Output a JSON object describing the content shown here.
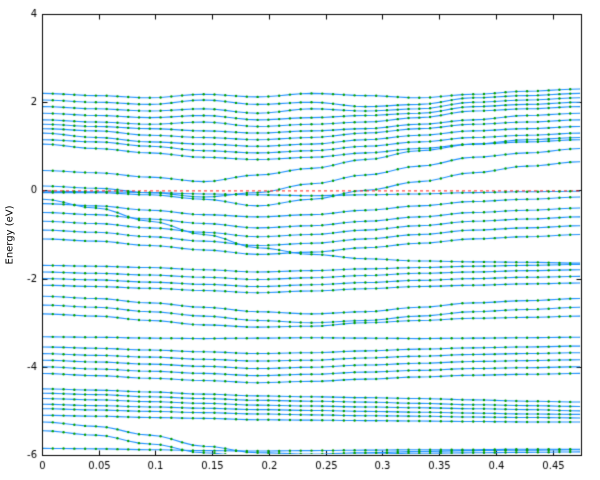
{
  "figure": {
    "background": "#ffffff"
  },
  "chart_data": {
    "type": "line",
    "title": "",
    "xlabel": "",
    "ylabel": "Energy (eV)",
    "xlim": [
      0,
      0.475
    ],
    "ylim": [
      -6,
      4
    ],
    "x_ticks": [
      0,
      0.05,
      0.1,
      0.15,
      0.2,
      0.25,
      0.3,
      0.35,
      0.4,
      0.45
    ],
    "x_tick_labels": [
      "0",
      "0.05",
      "0.1",
      "0.15",
      "0.2",
      "0.25",
      "0.3",
      "0.35",
      "0.4",
      "0.45"
    ],
    "y_ticks": [
      4,
      2,
      0,
      -2,
      -4,
      -6
    ],
    "y_tick_labels": [
      "4",
      "2",
      "0",
      "-2",
      "-4",
      "-6"
    ],
    "grid": false,
    "legend": "none",
    "line_color": "#1e90ff",
    "marker_color": "#00a000",
    "axis_color": "#000000",
    "fermi_level": {
      "y": 0,
      "color": "#ff2020",
      "style": "dashed"
    },
    "band_t": [
      0,
      0.1,
      0.2,
      0.3,
      0.4,
      0.5,
      0.6,
      0.7,
      0.8,
      0.9,
      1.0
    ],
    "bands": [
      [
        2.2,
        2.15,
        2.1,
        2.18,
        2.12,
        2.2,
        2.15,
        2.1,
        2.18,
        2.25,
        2.3
      ],
      [
        2.05,
        2.0,
        1.95,
        2.05,
        1.95,
        2.0,
        1.9,
        1.95,
        2.1,
        2.15,
        2.2
      ],
      [
        1.9,
        1.85,
        1.8,
        1.85,
        1.75,
        1.85,
        1.8,
        1.85,
        2.0,
        2.05,
        2.1
      ],
      [
        1.75,
        1.7,
        1.65,
        1.7,
        1.6,
        1.65,
        1.7,
        1.75,
        1.9,
        1.95,
        2.0
      ],
      [
        1.6,
        1.55,
        1.5,
        1.55,
        1.45,
        1.5,
        1.55,
        1.65,
        1.8,
        1.85,
        1.9
      ],
      [
        1.5,
        1.45,
        1.4,
        1.35,
        1.3,
        1.35,
        1.4,
        1.5,
        1.6,
        1.7,
        1.75
      ],
      [
        1.4,
        1.35,
        1.25,
        1.2,
        1.15,
        1.2,
        1.3,
        1.4,
        1.5,
        1.55,
        1.6
      ],
      [
        1.3,
        1.2,
        1.1,
        1.05,
        1.0,
        1.05,
        1.15,
        1.25,
        1.35,
        1.4,
        1.45
      ],
      [
        1.15,
        1.1,
        1.0,
        0.9,
        0.85,
        0.9,
        1.0,
        1.1,
        1.2,
        1.25,
        1.3
      ],
      [
        1.05,
        0.95,
        0.85,
        0.75,
        0.7,
        0.75,
        0.85,
        0.95,
        1.05,
        1.1,
        1.15
      ],
      [
        0.45,
        0.4,
        0.3,
        0.2,
        0.35,
        0.5,
        0.7,
        0.9,
        1.05,
        1.15,
        1.2
      ],
      [
        0.1,
        0.05,
        -0.05,
        -0.15,
        -0.05,
        0.15,
        0.35,
        0.55,
        0.75,
        0.85,
        0.95
      ],
      [
        -0.05,
        -0.05,
        -0.1,
        -0.2,
        -0.35,
        -0.2,
        0.0,
        0.2,
        0.4,
        0.55,
        0.65
      ],
      [
        -0.02,
        -0.03,
        -0.05,
        -0.08,
        -0.1,
        -0.12,
        -0.1,
        -0.08,
        -0.05,
        -0.03,
        -0.02
      ],
      [
        -0.3,
        -0.35,
        -0.45,
        -0.55,
        -0.6,
        -0.55,
        -0.45,
        -0.35,
        -0.25,
        -0.2,
        -0.15
      ],
      [
        -0.5,
        -0.55,
        -0.65,
        -0.75,
        -0.85,
        -0.8,
        -0.7,
        -0.6,
        -0.5,
        -0.45,
        -0.4
      ],
      [
        -0.7,
        -0.75,
        -0.85,
        -0.95,
        -1.05,
        -1.0,
        -0.9,
        -0.8,
        -0.7,
        -0.65,
        -0.6
      ],
      [
        -0.9,
        -0.95,
        -1.05,
        -1.15,
        -1.25,
        -1.2,
        -1.1,
        -1.0,
        -0.9,
        -0.85,
        -0.8
      ],
      [
        -1.1,
        -1.15,
        -1.25,
        -1.35,
        -1.45,
        -1.4,
        -1.3,
        -1.2,
        -1.1,
        -1.05,
        -1.0
      ],
      [
        -0.2,
        -0.4,
        -0.7,
        -1.0,
        -1.3,
        -1.45,
        -1.55,
        -1.6,
        -1.62,
        -1.63,
        -1.65
      ],
      [
        -1.7,
        -1.72,
        -1.75,
        -1.8,
        -1.85,
        -1.82,
        -1.78,
        -1.75,
        -1.72,
        -1.7,
        -1.68
      ],
      [
        -1.85,
        -1.88,
        -1.92,
        -1.97,
        -2.02,
        -1.98,
        -1.93,
        -1.88,
        -1.85,
        -1.82,
        -1.8
      ],
      [
        -2.0,
        -2.03,
        -2.08,
        -2.13,
        -2.18,
        -2.14,
        -2.09,
        -2.04,
        -2.0,
        -1.97,
        -1.95
      ],
      [
        -2.15,
        -2.18,
        -2.22,
        -2.27,
        -2.32,
        -2.28,
        -2.23,
        -2.18,
        -2.15,
        -2.12,
        -2.1
      ],
      [
        -2.4,
        -2.45,
        -2.55,
        -2.65,
        -2.75,
        -2.8,
        -2.75,
        -2.65,
        -2.55,
        -2.5,
        -2.45
      ],
      [
        -2.6,
        -2.65,
        -2.75,
        -2.85,
        -2.95,
        -3.0,
        -2.95,
        -2.85,
        -2.75,
        -2.7,
        -2.65
      ],
      [
        -2.8,
        -2.85,
        -2.95,
        -3.05,
        -3.1,
        -3.08,
        -3.0,
        -2.95,
        -2.9,
        -2.88,
        -2.85
      ],
      [
        -3.32,
        -3.33,
        -3.35,
        -3.36,
        -3.35,
        -3.34,
        -3.35,
        -3.36,
        -3.35,
        -3.34,
        -3.33
      ],
      [
        -3.55,
        -3.58,
        -3.62,
        -3.66,
        -3.7,
        -3.68,
        -3.64,
        -3.6,
        -3.57,
        -3.55,
        -3.53
      ],
      [
        -3.7,
        -3.74,
        -3.78,
        -3.83,
        -3.87,
        -3.85,
        -3.8,
        -3.76,
        -3.72,
        -3.7,
        -3.68
      ],
      [
        -3.85,
        -3.89,
        -3.94,
        -3.99,
        -4.04,
        -4.01,
        -3.96,
        -3.92,
        -3.88,
        -3.86,
        -3.84
      ],
      [
        -4.0,
        -4.05,
        -4.1,
        -4.15,
        -4.2,
        -4.17,
        -4.12,
        -4.08,
        -4.04,
        -4.02,
        -4.0
      ],
      [
        -4.15,
        -4.2,
        -4.26,
        -4.31,
        -4.36,
        -4.33,
        -4.28,
        -4.23,
        -4.19,
        -4.17,
        -4.15
      ],
      [
        -4.5,
        -4.53,
        -4.57,
        -4.62,
        -4.66,
        -4.68,
        -4.7,
        -4.72,
        -4.75,
        -4.78,
        -4.8
      ],
      [
        -4.6,
        -4.63,
        -4.68,
        -4.72,
        -4.76,
        -4.78,
        -4.8,
        -4.83,
        -4.86,
        -4.88,
        -4.9
      ],
      [
        -4.72,
        -4.75,
        -4.79,
        -4.83,
        -4.87,
        -4.89,
        -4.91,
        -4.93,
        -4.95,
        -4.97,
        -5.0
      ],
      [
        -4.85,
        -4.88,
        -4.91,
        -4.94,
        -4.97,
        -4.99,
        -5.01,
        -5.03,
        -5.05,
        -5.07,
        -5.08
      ],
      [
        -4.95,
        -4.98,
        -5.01,
        -5.04,
        -5.07,
        -5.09,
        -5.11,
        -5.12,
        -5.14,
        -5.15,
        -5.16
      ],
      [
        -5.1,
        -5.12,
        -5.15,
        -5.17,
        -5.2,
        -5.21,
        -5.22,
        -5.23,
        -5.24,
        -5.25,
        -5.25
      ],
      [
        -5.25,
        -5.35,
        -5.55,
        -5.8,
        -5.95,
        -5.98,
        -5.95,
        -5.92,
        -5.9,
        -5.89,
        -5.88
      ],
      [
        -5.45,
        -5.55,
        -5.75,
        -5.95,
        -6.05,
        -6.02,
        -5.98,
        -5.96,
        -5.95,
        -5.94,
        -5.93
      ],
      [
        -5.85,
        -5.86,
        -5.88,
        -5.9,
        -5.91,
        -5.9,
        -5.89,
        -5.88,
        -5.88,
        -5.87,
        -5.87
      ]
    ]
  }
}
